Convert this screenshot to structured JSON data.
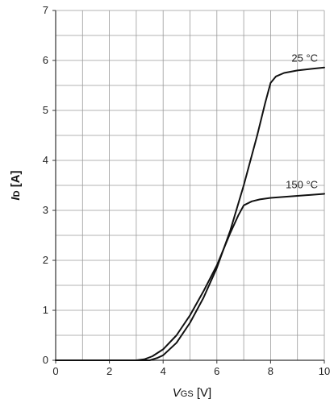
{
  "chart_data": {
    "type": "line",
    "title": "",
    "xlabel": {
      "main": "V",
      "sub": "GS",
      "unit": " [V]"
    },
    "ylabel": {
      "main": "I",
      "sub": "D",
      "unit": " [A]"
    },
    "xlim": [
      0,
      10
    ],
    "ylim": [
      0,
      7
    ],
    "x_ticks": [
      "0",
      "2",
      "4",
      "6",
      "8",
      "10"
    ],
    "y_ticks": [
      "0",
      "1",
      "2",
      "3",
      "4",
      "5",
      "6",
      "7"
    ],
    "grid": true,
    "grid_step_x": 1,
    "grid_step_y": 0.5,
    "series": [
      {
        "name": "25 °C",
        "x": [
          0,
          3.2,
          3.5,
          3.8,
          4.0,
          4.5,
          5.0,
          5.5,
          6.0,
          6.5,
          7.0,
          7.5,
          7.8,
          8.0,
          8.2,
          8.5,
          9.0,
          9.5,
          10.0
        ],
        "y": [
          0,
          0,
          0.0,
          0.05,
          0.1,
          0.35,
          0.75,
          1.25,
          1.85,
          2.6,
          3.5,
          4.5,
          5.15,
          5.55,
          5.68,
          5.75,
          5.8,
          5.83,
          5.86
        ]
      },
      {
        "name": "150 °C",
        "x": [
          0,
          3.0,
          3.3,
          3.6,
          4.0,
          4.5,
          5.0,
          5.5,
          6.0,
          6.5,
          6.8,
          7.0,
          7.3,
          7.6,
          8.0,
          9.0,
          10.0
        ],
        "y": [
          0,
          0,
          0.02,
          0.08,
          0.22,
          0.5,
          0.9,
          1.38,
          1.9,
          2.55,
          2.9,
          3.1,
          3.18,
          3.22,
          3.25,
          3.29,
          3.33
        ]
      }
    ],
    "series_labels": [
      {
        "text": "25 °C",
        "x": 8.2,
        "y": 5.88
      },
      {
        "text": "150 °C",
        "x": 8.2,
        "y": 3.35
      }
    ],
    "colors": {
      "line": "#111111",
      "grid": "#9a9a9a",
      "axis": "#333333"
    }
  }
}
